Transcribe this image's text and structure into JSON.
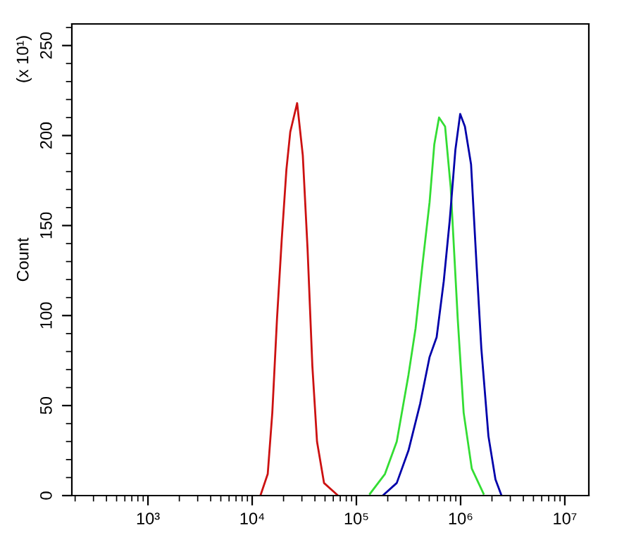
{
  "chart_data": {
    "type": "line",
    "ylabel": "Count",
    "annotations": [
      "(x 10¹)"
    ],
    "xlim": [
      186,
      17000000
    ],
    "ylim": [
      0,
      262
    ],
    "log": "x",
    "grid": false,
    "marker": "none",
    "line_style": "solid",
    "xticks": [
      {
        "value": 1000,
        "label": "10³"
      },
      {
        "value": 10000,
        "label": "10⁴"
      },
      {
        "value": 100000,
        "label": "10⁵"
      },
      {
        "value": 1000000,
        "label": "10⁶"
      },
      {
        "value": 10000000,
        "label": "10⁷"
      }
    ],
    "yticks": [
      0,
      50,
      100,
      150,
      200,
      250
    ],
    "series": [
      {
        "color": "#cc1111",
        "x": [
          12000,
          14100,
          15600,
          17300,
          19200,
          21300,
          23200,
          27000,
          30600,
          34000,
          37800,
          41900,
          48900,
          66700
        ],
        "values": [
          0,
          12,
          46,
          98,
          142,
          181,
          202,
          218,
          189,
          137,
          72,
          30,
          7,
          0
        ]
      },
      {
        "color": "#33dd33",
        "x": [
          135000,
          188000,
          244000,
          316000,
          370000,
          432000,
          504000,
          559000,
          621000,
          710000,
          804000,
          939000,
          1070000,
          1280000,
          1660000
        ],
        "values": [
          1,
          12,
          30,
          67,
          93,
          129,
          163,
          195,
          210,
          205,
          171,
          98,
          46,
          15,
          1
        ]
      },
      {
        "color": "#0000aa",
        "x": [
          179000,
          244000,
          316000,
          409000,
          504000,
          589000,
          689000,
          787000,
          891000,
          991000,
          1100000,
          1260000,
          1420000,
          1580000,
          1850000,
          2160000,
          2470000
        ],
        "values": [
          0,
          7,
          25,
          51,
          77,
          88,
          119,
          153,
          192,
          212,
          205,
          184,
          129,
          82,
          33,
          9,
          0
        ]
      }
    ]
  }
}
